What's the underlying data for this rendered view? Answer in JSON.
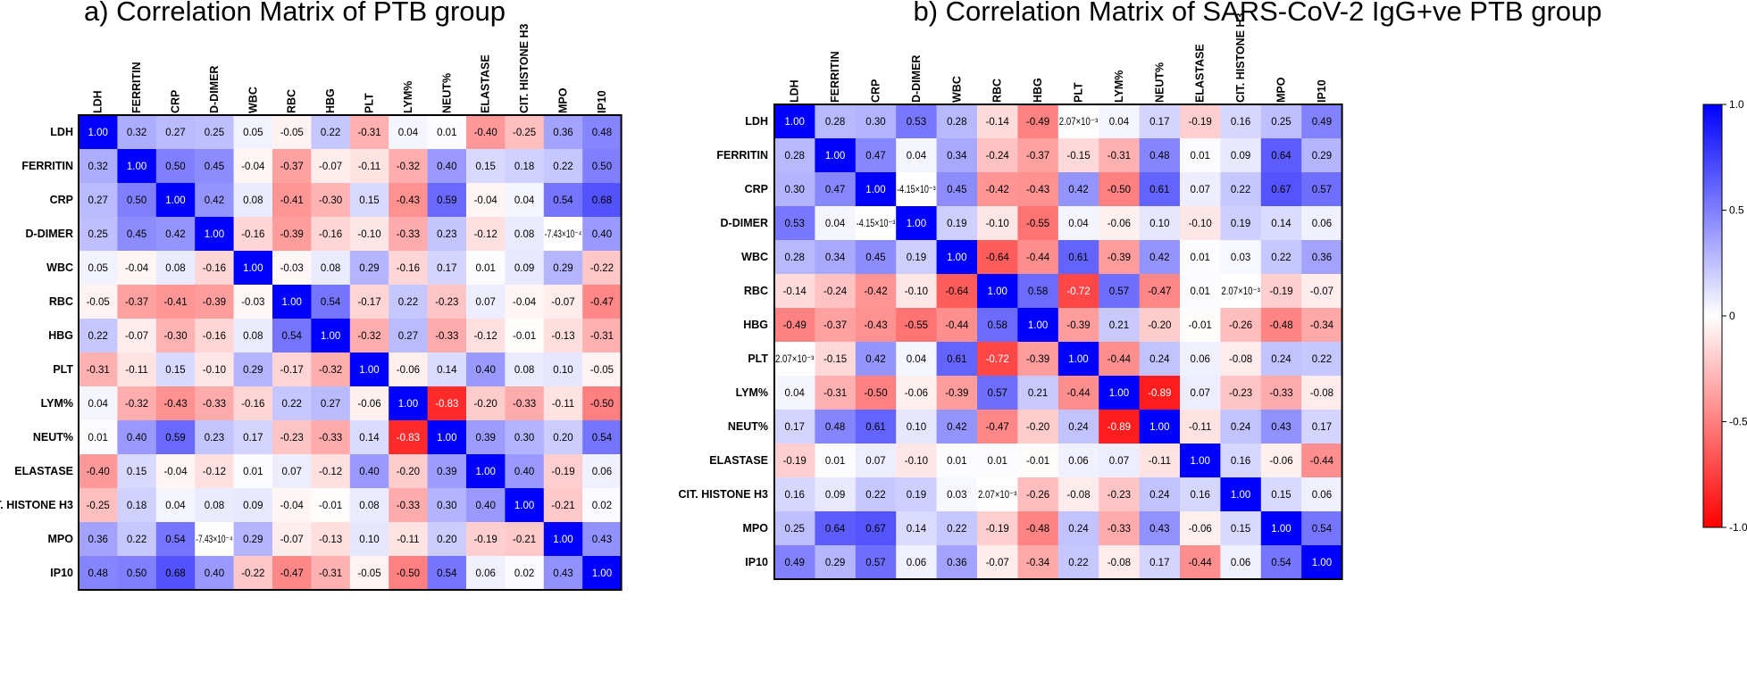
{
  "chart_data": [
    {
      "type": "heatmap",
      "title": "a) Correlation Matrix of PTB group",
      "variables": [
        "LDH",
        "FERRITIN",
        "CRP",
        "D-DIMER",
        "WBC",
        "RBC",
        "HBG",
        "PLT",
        "LYM%",
        "NEUT%",
        "ELASTASE",
        "CIT. HISTONE H3",
        "MPO",
        "IP10"
      ],
      "values": [
        [
          1.0,
          0.32,
          0.27,
          0.25,
          0.05,
          -0.05,
          0.22,
          -0.31,
          0.04,
          0.01,
          -0.4,
          -0.25,
          0.36,
          0.48
        ],
        [
          0.32,
          1.0,
          0.5,
          0.45,
          -0.04,
          -0.37,
          -0.07,
          -0.11,
          -0.32,
          0.4,
          0.15,
          0.18,
          0.22,
          0.5
        ],
        [
          0.27,
          0.5,
          1.0,
          0.42,
          0.08,
          -0.41,
          -0.3,
          0.15,
          -0.43,
          0.59,
          -0.04,
          0.04,
          0.54,
          0.68
        ],
        [
          0.25,
          0.45,
          0.42,
          1.0,
          -0.16,
          -0.39,
          -0.16,
          -0.1,
          -0.33,
          0.23,
          -0.12,
          0.08,
          -0.000743,
          0.4
        ],
        [
          0.05,
          -0.04,
          0.08,
          -0.16,
          1.0,
          -0.03,
          0.08,
          0.29,
          -0.16,
          0.17,
          0.01,
          0.09,
          0.29,
          -0.22
        ],
        [
          -0.05,
          -0.37,
          -0.41,
          -0.39,
          -0.03,
          1.0,
          0.54,
          -0.17,
          0.22,
          -0.23,
          0.07,
          -0.04,
          -0.07,
          -0.47
        ],
        [
          0.22,
          -0.07,
          -0.3,
          -0.16,
          0.08,
          0.54,
          1.0,
          -0.32,
          0.27,
          -0.33,
          -0.12,
          -0.01,
          -0.13,
          -0.31
        ],
        [
          -0.31,
          -0.11,
          0.15,
          -0.1,
          0.29,
          -0.17,
          -0.32,
          1.0,
          -0.06,
          0.14,
          0.4,
          0.08,
          0.1,
          -0.05
        ],
        [
          0.04,
          -0.32,
          -0.43,
          -0.33,
          -0.16,
          0.22,
          0.27,
          -0.06,
          1.0,
          -0.83,
          -0.2,
          -0.33,
          -0.11,
          -0.5
        ],
        [
          0.01,
          0.4,
          0.59,
          0.23,
          0.17,
          -0.23,
          -0.33,
          0.14,
          -0.83,
          1.0,
          0.39,
          0.3,
          0.2,
          0.54
        ],
        [
          -0.4,
          0.15,
          -0.04,
          -0.12,
          0.01,
          0.07,
          -0.12,
          0.4,
          -0.2,
          0.39,
          1.0,
          0.4,
          -0.19,
          0.06
        ],
        [
          -0.25,
          0.18,
          0.04,
          0.08,
          0.09,
          -0.04,
          -0.01,
          0.08,
          -0.33,
          0.3,
          0.4,
          1.0,
          -0.21,
          0.02
        ],
        [
          0.36,
          0.22,
          0.54,
          -0.000743,
          0.29,
          -0.07,
          -0.13,
          0.1,
          -0.11,
          0.2,
          -0.19,
          -0.21,
          1.0,
          0.43
        ],
        [
          0.48,
          0.5,
          0.68,
          0.4,
          -0.22,
          -0.47,
          -0.31,
          -0.05,
          -0.5,
          0.54,
          0.06,
          0.02,
          0.43,
          1.0
        ]
      ],
      "labels": [
        [
          "1.00",
          "0.32",
          "0.27",
          "0.25",
          "0.05",
          "-0.05",
          "0.22",
          "-0.31",
          "0.04",
          "0.01",
          "-0.40",
          "-0.25",
          "0.36",
          "0.48"
        ],
        [
          "0.32",
          "1.00",
          "0.50",
          "0.45",
          "-0.04",
          "-0.37",
          "-0.07",
          "-0.11",
          "-0.32",
          "0.40",
          "0.15",
          "0.18",
          "0.22",
          "0.50"
        ],
        [
          "0.27",
          "0.50",
          "1.00",
          "0.42",
          "0.08",
          "-0.41",
          "-0.30",
          "0.15",
          "-0.43",
          "0.59",
          "-0.04",
          "0.04",
          "0.54",
          "0.68"
        ],
        [
          "0.25",
          "0.45",
          "0.42",
          "1.00",
          "-0.16",
          "-0.39",
          "-0.16",
          "-0.10",
          "-0.33",
          "0.23",
          "-0.12",
          "0.08",
          "-7.43×10⁻⁴",
          "0.40"
        ],
        [
          "0.05",
          "-0.04",
          "0.08",
          "-0.16",
          "1.00",
          "-0.03",
          "0.08",
          "0.29",
          "-0.16",
          "0.17",
          "0.01",
          "0.09",
          "0.29",
          "-0.22"
        ],
        [
          "-0.05",
          "-0.37",
          "-0.41",
          "-0.39",
          "-0.03",
          "1.00",
          "0.54",
          "-0.17",
          "0.22",
          "-0.23",
          "0.07",
          "-0.04",
          "-0.07",
          "-0.47"
        ],
        [
          "0.22",
          "-0.07",
          "-0.30",
          "-0.16",
          "0.08",
          "0.54",
          "1.00",
          "-0.32",
          "0.27",
          "-0.33",
          "-0.12",
          "-0.01",
          "-0.13",
          "-0.31"
        ],
        [
          "-0.31",
          "-0.11",
          "0.15",
          "-0.10",
          "0.29",
          "-0.17",
          "-0.32",
          "1.00",
          "-0.06",
          "0.14",
          "0.40",
          "0.08",
          "0.10",
          "-0.05"
        ],
        [
          "0.04",
          "-0.32",
          "-0.43",
          "-0.33",
          "-0.16",
          "0.22",
          "0.27",
          "-0.06",
          "1.00",
          "-0.83",
          "-0.20",
          "-0.33",
          "-0.11",
          "-0.50"
        ],
        [
          "0.01",
          "0.40",
          "0.59",
          "0.23",
          "0.17",
          "-0.23",
          "-0.33",
          "0.14",
          "-0.83",
          "1.00",
          "0.39",
          "0.30",
          "0.20",
          "0.54"
        ],
        [
          "-0.40",
          "0.15",
          "-0.04",
          "-0.12",
          "0.01",
          "0.07",
          "-0.12",
          "0.40",
          "-0.20",
          "0.39",
          "1.00",
          "0.40",
          "-0.19",
          "0.06"
        ],
        [
          "-0.25",
          "0.18",
          "0.04",
          "0.08",
          "0.09",
          "-0.04",
          "-0.01",
          "0.08",
          "-0.33",
          "0.30",
          "0.40",
          "1.00",
          "-0.21",
          "0.02"
        ],
        [
          "0.36",
          "0.22",
          "0.54",
          "-7.43×10⁻⁴",
          "0.29",
          "-0.07",
          "-0.13",
          "0.10",
          "-0.11",
          "0.20",
          "-0.19",
          "-0.21",
          "1.00",
          "0.43"
        ],
        [
          "0.48",
          "0.50",
          "0.68",
          "0.40",
          "-0.22",
          "-0.47",
          "-0.31",
          "-0.05",
          "-0.50",
          "0.54",
          "0.06",
          "0.02",
          "0.43",
          "1.00"
        ]
      ],
      "colorbar": {
        "range": [
          -1.0,
          1.0
        ],
        "ticks": [
          "1.0",
          "0.5",
          "0",
          "-0.5",
          "-1.0"
        ],
        "tick_values": [
          1.0,
          0.5,
          0,
          -0.5,
          -1.0
        ],
        "low_color": "#ff0000",
        "mid_color": "#ffffff",
        "high_color": "#0000ff"
      }
    },
    {
      "type": "heatmap",
      "title": "b) Correlation Matrix of SARS-CoV-2 IgG+ve PTB group",
      "variables": [
        "LDH",
        "FERRITIN",
        "CRP",
        "D-DIMER",
        "WBC",
        "RBC",
        "HBG",
        "PLT",
        "LYM%",
        "NEUT%",
        "ELASTASE",
        "CIT. HISTONE H3",
        "MPO",
        "IP10"
      ],
      "values": [
        [
          1.0,
          0.28,
          0.3,
          0.53,
          0.28,
          -0.14,
          -0.49,
          0.00207,
          0.04,
          0.17,
          -0.19,
          0.16,
          0.25,
          0.49
        ],
        [
          0.28,
          1.0,
          0.47,
          0.04,
          0.34,
          -0.24,
          -0.37,
          -0.15,
          -0.31,
          0.48,
          0.01,
          0.09,
          0.64,
          0.29
        ],
        [
          0.3,
          0.47,
          1.0,
          -0.00415,
          0.45,
          -0.42,
          -0.43,
          0.42,
          -0.5,
          0.61,
          0.07,
          0.22,
          0.67,
          0.57
        ],
        [
          0.53,
          0.04,
          -0.00415,
          1.0,
          0.19,
          -0.1,
          -0.55,
          0.04,
          -0.06,
          0.1,
          -0.1,
          0.19,
          0.14,
          0.06
        ],
        [
          0.28,
          0.34,
          0.45,
          0.19,
          1.0,
          -0.64,
          -0.44,
          0.61,
          -0.39,
          0.42,
          0.01,
          0.03,
          0.22,
          0.36
        ],
        [
          -0.14,
          -0.24,
          -0.42,
          -0.1,
          -0.64,
          1.0,
          0.58,
          -0.72,
          0.57,
          -0.47,
          0.01,
          0.00207,
          -0.19,
          -0.07
        ],
        [
          -0.49,
          -0.37,
          -0.43,
          -0.55,
          -0.44,
          0.58,
          1.0,
          -0.39,
          0.21,
          -0.2,
          -0.01,
          -0.26,
          -0.48,
          -0.34
        ],
        [
          0.00207,
          -0.15,
          0.42,
          0.04,
          0.61,
          -0.72,
          -0.39,
          1.0,
          -0.44,
          0.24,
          0.06,
          -0.08,
          0.24,
          0.22
        ],
        [
          0.04,
          -0.31,
          -0.5,
          -0.06,
          -0.39,
          0.57,
          0.21,
          -0.44,
          1.0,
          -0.89,
          0.07,
          -0.23,
          -0.33,
          -0.08
        ],
        [
          0.17,
          0.48,
          0.61,
          0.1,
          0.42,
          -0.47,
          -0.2,
          0.24,
          -0.89,
          1.0,
          -0.11,
          0.24,
          0.43,
          0.17
        ],
        [
          -0.19,
          0.01,
          0.07,
          -0.1,
          0.01,
          0.01,
          -0.01,
          0.06,
          0.07,
          -0.11,
          1.0,
          0.16,
          -0.06,
          -0.44
        ],
        [
          0.16,
          0.09,
          0.22,
          0.19,
          0.03,
          0.00207,
          -0.26,
          -0.08,
          -0.23,
          0.24,
          0.16,
          1.0,
          0.15,
          0.06
        ],
        [
          0.25,
          0.64,
          0.67,
          0.14,
          0.22,
          -0.19,
          -0.48,
          0.24,
          -0.33,
          0.43,
          -0.06,
          0.15,
          1.0,
          0.54
        ],
        [
          0.49,
          0.29,
          0.57,
          0.06,
          0.36,
          -0.07,
          -0.34,
          0.22,
          -0.08,
          0.17,
          -0.44,
          0.06,
          0.54,
          1.0
        ]
      ],
      "labels": [
        [
          "1.00",
          "0.28",
          "0.30",
          "0.53",
          "0.28",
          "-0.14",
          "-0.49",
          "2.07×10⁻³",
          "0.04",
          "0.17",
          "-0.19",
          "0.16",
          "0.25",
          "0.49"
        ],
        [
          "0.28",
          "1.00",
          "0.47",
          "0.04",
          "0.34",
          "-0.24",
          "-0.37",
          "-0.15",
          "-0.31",
          "0.48",
          "0.01",
          "0.09",
          "0.64",
          "0.29"
        ],
        [
          "0.30",
          "0.47",
          "1.00",
          "-4.15×10⁻³",
          "0.45",
          "-0.42",
          "-0.43",
          "0.42",
          "-0.50",
          "0.61",
          "0.07",
          "0.22",
          "0.67",
          "0.57"
        ],
        [
          "0.53",
          "0.04",
          "-4.15×10⁻³",
          "1.00",
          "0.19",
          "-0.10",
          "-0.55",
          "0.04",
          "-0.06",
          "0.10",
          "-0.10",
          "0.19",
          "0.14",
          "0.06"
        ],
        [
          "0.28",
          "0.34",
          "0.45",
          "0.19",
          "1.00",
          "-0.64",
          "-0.44",
          "0.61",
          "-0.39",
          "0.42",
          "0.01",
          "0.03",
          "0.22",
          "0.36"
        ],
        [
          "-0.14",
          "-0.24",
          "-0.42",
          "-0.10",
          "-0.64",
          "1.00",
          "0.58",
          "-0.72",
          "0.57",
          "-0.47",
          "0.01",
          "2.07×10⁻³",
          "-0.19",
          "-0.07"
        ],
        [
          "-0.49",
          "-0.37",
          "-0.43",
          "-0.55",
          "-0.44",
          "0.58",
          "1.00",
          "-0.39",
          "0.21",
          "-0.20",
          "-0.01",
          "-0.26",
          "-0.48",
          "-0.34"
        ],
        [
          "2.07×10⁻³",
          "-0.15",
          "0.42",
          "0.04",
          "0.61",
          "-0.72",
          "-0.39",
          "1.00",
          "-0.44",
          "0.24",
          "0.06",
          "-0.08",
          "0.24",
          "0.22"
        ],
        [
          "0.04",
          "-0.31",
          "-0.50",
          "-0.06",
          "-0.39",
          "0.57",
          "0.21",
          "-0.44",
          "1.00",
          "-0.89",
          "0.07",
          "-0.23",
          "-0.33",
          "-0.08"
        ],
        [
          "0.17",
          "0.48",
          "0.61",
          "0.10",
          "0.42",
          "-0.47",
          "-0.20",
          "0.24",
          "-0.89",
          "1.00",
          "-0.11",
          "0.24",
          "0.43",
          "0.17"
        ],
        [
          "-0.19",
          "0.01",
          "0.07",
          "-0.10",
          "0.01",
          "0.01",
          "-0.01",
          "0.06",
          "0.07",
          "-0.11",
          "1.00",
          "0.16",
          "-0.06",
          "-0.44"
        ],
        [
          "0.16",
          "0.09",
          "0.22",
          "0.19",
          "0.03",
          "2.07×10⁻³",
          "-0.26",
          "-0.08",
          "-0.23",
          "0.24",
          "0.16",
          "1.00",
          "0.15",
          "0.06"
        ],
        [
          "0.25",
          "0.64",
          "0.67",
          "0.14",
          "0.22",
          "-0.19",
          "-0.48",
          "0.24",
          "-0.33",
          "0.43",
          "-0.06",
          "0.15",
          "1.00",
          "0.54"
        ],
        [
          "0.49",
          "0.29",
          "0.57",
          "0.06",
          "0.36",
          "-0.07",
          "-0.34",
          "0.22",
          "-0.08",
          "0.17",
          "-0.44",
          "0.06",
          "0.54",
          "1.00"
        ]
      ],
      "colorbar": {
        "range": [
          -1.0,
          1.0
        ],
        "ticks": [
          "1.0",
          "0.5",
          "0",
          "-0.5",
          "-1.0"
        ],
        "tick_values": [
          1.0,
          0.5,
          0,
          -0.5,
          -1.0
        ],
        "low_color": "#ff0000",
        "mid_color": "#ffffff",
        "high_color": "#0000ff"
      }
    }
  ]
}
